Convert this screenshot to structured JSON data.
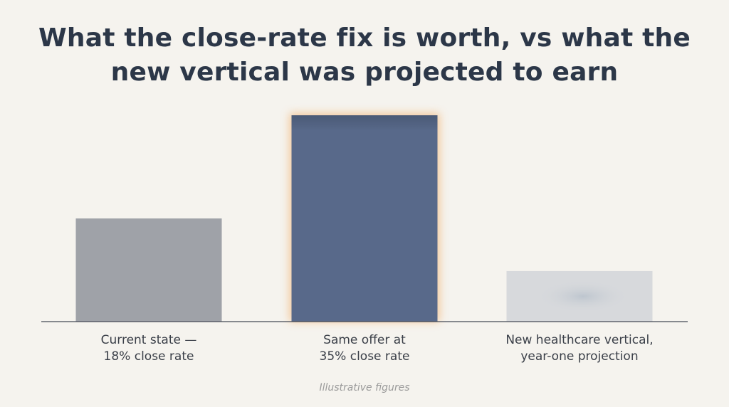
{
  "chart_data": {
    "type": "bar",
    "title_lines": [
      "What the close-rate fix is worth, vs what the",
      "new vertical was projected to earn"
    ],
    "categories": [
      {
        "lines": [
          "Current state —",
          "18% close rate"
        ],
        "value": 100,
        "color": "#9fa2a8",
        "highlight": false
      },
      {
        "lines": [
          "Same offer at",
          "35% close rate"
        ],
        "value": 200,
        "color": "#58698a",
        "highlight": true
      },
      {
        "lines": [
          "New healthcare vertical,",
          "year-one projection"
        ],
        "value": 49,
        "color": "#d7d9dc",
        "highlight": false
      }
    ],
    "ylim": [
      0,
      200
    ],
    "axes_visible": false,
    "grid": false,
    "legend": "none",
    "footnote": "Illustrative figures"
  }
}
